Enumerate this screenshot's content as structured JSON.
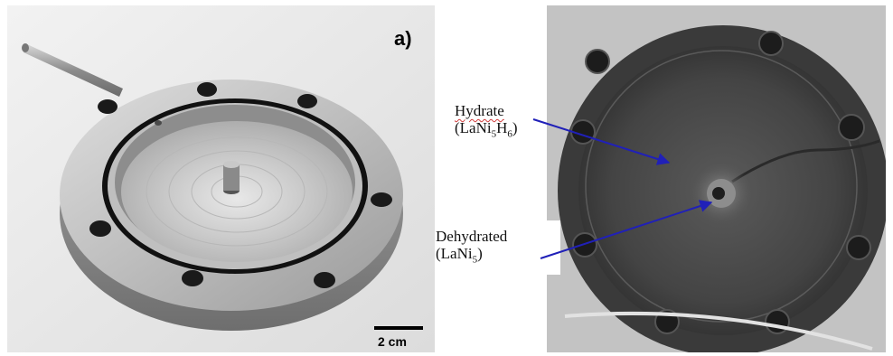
{
  "panel_a": {
    "label": "a)",
    "scale_label": "2 cm"
  },
  "panel_b": {
    "hydrate": {
      "name": "Hydrate",
      "formula_open": "(LaNi",
      "sub1": "5",
      "mid": "H",
      "sub2": "6",
      "formula_close": ")"
    },
    "dehydrated": {
      "name": "Dehydrated",
      "formula_open": "(LaNi",
      "sub1": "5",
      "formula_close": ")"
    }
  },
  "colors": {
    "arrow": "#2020b8",
    "background": "#ffffff"
  }
}
